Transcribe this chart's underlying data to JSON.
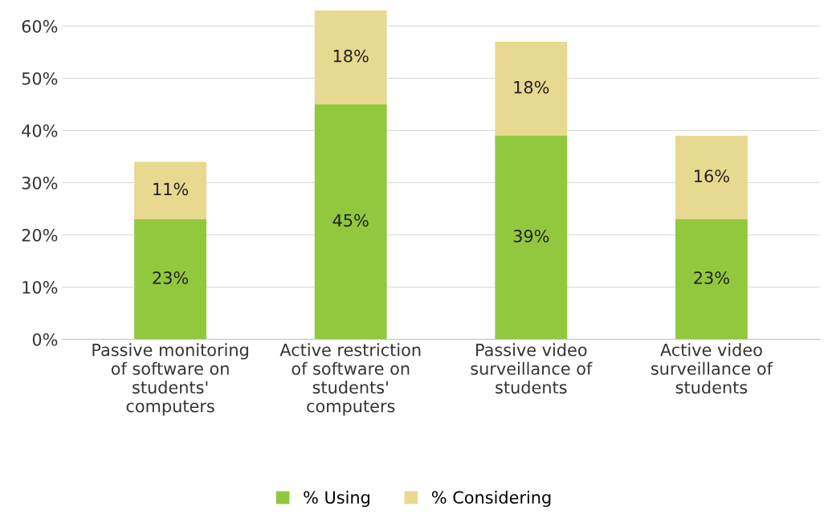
{
  "chart_data": {
    "type": "bar",
    "stacked": true,
    "categories": [
      "Passive monitoring of software on students' computers",
      "Active restriction of software on students' computers",
      "Passive video surveillance of students",
      "Active video surveillance of students"
    ],
    "series": [
      {
        "name": "% Using",
        "color": "#92c83e",
        "values": [
          23,
          45,
          39,
          23
        ],
        "value_labels": [
          "23%",
          "45%",
          "39%",
          "23%"
        ]
      },
      {
        "name": "% Considering",
        "color": "#e8d990",
        "values": [
          11,
          18,
          18,
          16
        ],
        "value_labels": [
          "11%",
          "18%",
          "18%",
          "16%"
        ]
      }
    ],
    "ylim": [
      0,
      63
    ],
    "yticks": [
      {
        "value": 0,
        "label": "0%"
      },
      {
        "value": 10,
        "label": "10%"
      },
      {
        "value": 20,
        "label": "20%"
      },
      {
        "value": 30,
        "label": "30%"
      },
      {
        "value": 40,
        "label": "40%"
      },
      {
        "value": 50,
        "label": "50%"
      },
      {
        "value": 60,
        "label": "60%"
      }
    ],
    "grid": "y",
    "legend": "bottom"
  }
}
